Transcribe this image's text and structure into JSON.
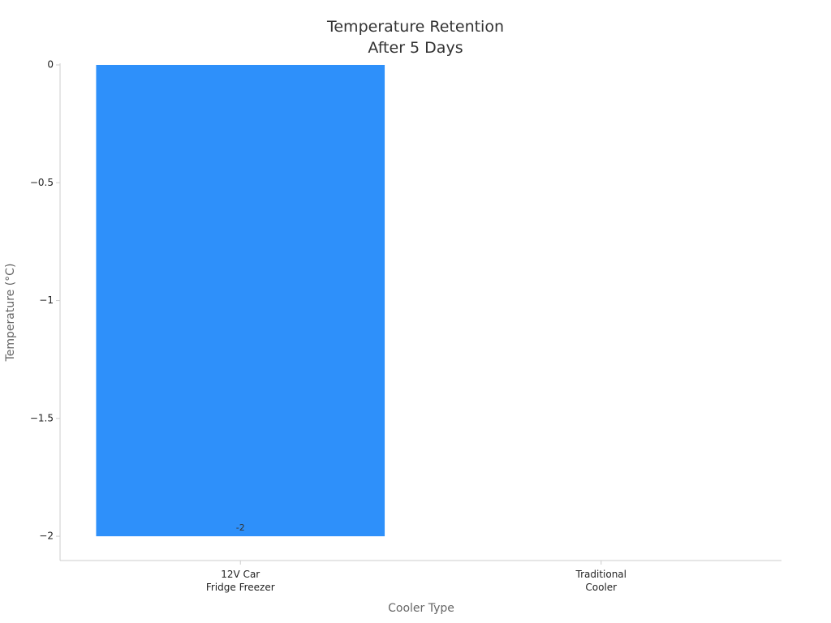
{
  "chart_data": {
    "type": "bar",
    "title": "Temperature Retention\nAfter 5 Days",
    "x_label": "Cooler Type",
    "y_label": "Temperature (°C)",
    "categories": [
      "12V Car\nFridge Freezer",
      "Traditional\nCooler"
    ],
    "values": [
      -2,
      null
    ],
    "color": "#2e90fa",
    "ylim": [
      -2.103,
      0
    ],
    "yticks": [
      0,
      {
        "value": -0.5,
        "label": "−0.5"
      },
      {
        "value": -1,
        "label": "−1"
      },
      {
        "value": -1.5,
        "label": "−1.5"
      },
      {
        "value": -2,
        "label": "−2"
      }
    ],
    "grid": false
  }
}
